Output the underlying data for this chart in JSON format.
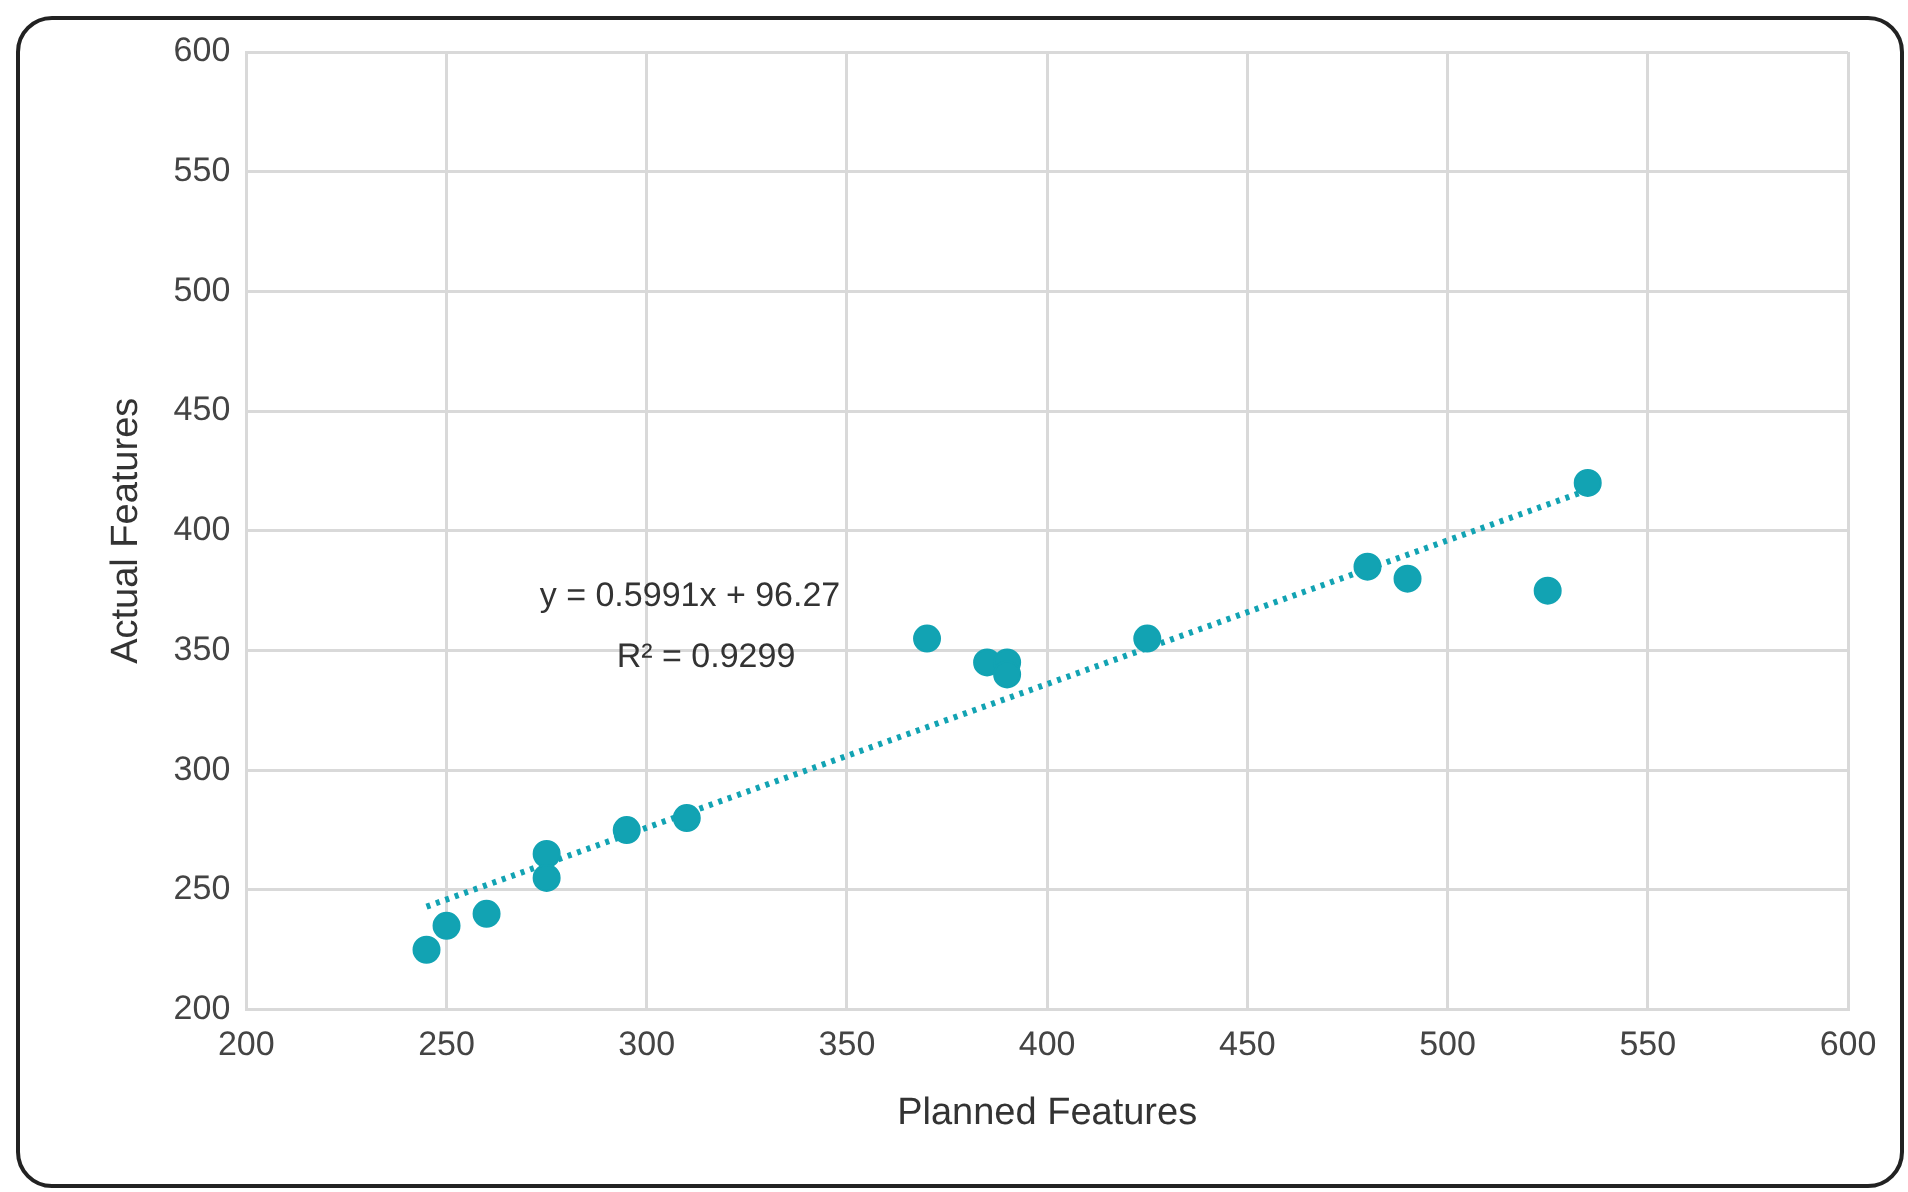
{
  "chart_data": {
    "type": "scatter",
    "xlabel": "Planned Features",
    "ylabel": "Actual Features",
    "series": [
      {
        "type": "scatter",
        "color": "#12a3b3",
        "x": [
          245,
          250,
          260,
          275,
          275,
          295,
          310,
          370,
          385,
          390,
          390,
          425,
          480,
          490,
          525,
          535
        ],
        "values": [
          225,
          235,
          240,
          265,
          255,
          275,
          280,
          355,
          345,
          345,
          340,
          355,
          385,
          380,
          375,
          420
        ]
      },
      {
        "type": "line",
        "color": "#12a3b3",
        "line_style": "dotted",
        "marker": "none",
        "x": [
          245,
          535
        ],
        "values": [
          243,
          417
        ]
      }
    ],
    "marker": "circle",
    "xlim": [
      200,
      600
    ],
    "xticks": [
      200,
      250,
      300,
      350,
      400,
      450,
      500,
      550,
      600
    ],
    "ylim": [
      200,
      600
    ],
    "yticks": [
      200,
      250,
      300,
      350,
      400,
      450,
      500,
      550,
      600
    ],
    "grid": true,
    "legend": false,
    "annotations": [
      "y = 0.5991x + 96.27",
      "R² = 0.9299"
    ]
  }
}
